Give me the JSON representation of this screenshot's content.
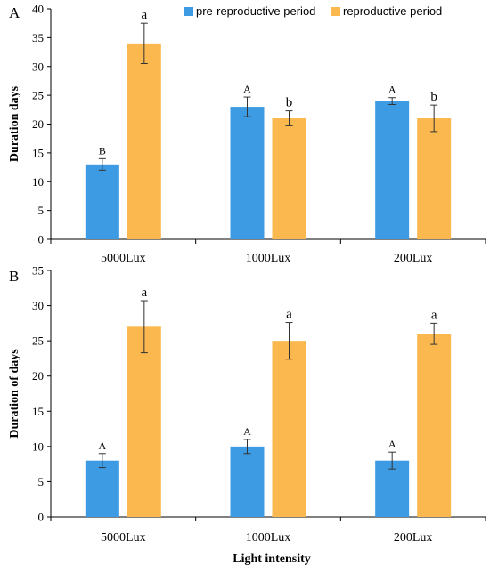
{
  "colors": {
    "pre": "#3d9be3",
    "rep": "#fbb84e",
    "axis": "#000000",
    "errorbar": "#333333"
  },
  "legend": {
    "entries": [
      {
        "label": "pre-reproductive period",
        "color": "#3d9be3"
      },
      {
        "label": "reproductive period",
        "color": "#fbb84e"
      }
    ],
    "placement": "top-right"
  },
  "xlabel": "Light intensity",
  "chart_data": [
    {
      "type": "bar",
      "panel_label": "A",
      "title": "",
      "ylabel": "Duration days",
      "ylim": [
        0,
        40
      ],
      "yticks": [
        0,
        5,
        10,
        15,
        20,
        25,
        30,
        35,
        40
      ],
      "categories": [
        "5000Lux",
        "1000Lux",
        "200Lux"
      ],
      "series": [
        {
          "name": "pre-reproductive period",
          "values": [
            13,
            23,
            24
          ],
          "errors": [
            1.0,
            1.7,
            0.6
          ],
          "letters": [
            "B",
            "A",
            "A"
          ]
        },
        {
          "name": "reproductive period",
          "values": [
            34,
            21,
            21
          ],
          "errors": [
            3.5,
            1.3,
            2.3
          ],
          "letters": [
            "a",
            "b",
            "b"
          ]
        }
      ]
    },
    {
      "type": "bar",
      "panel_label": "B",
      "title": "",
      "ylabel": "Duration of days",
      "ylim": [
        0,
        35
      ],
      "yticks": [
        0,
        5,
        10,
        15,
        20,
        25,
        30,
        35
      ],
      "categories": [
        "5000Lux",
        "1000Lux",
        "200Lux"
      ],
      "series": [
        {
          "name": "pre-reproductive period",
          "values": [
            8,
            10,
            8
          ],
          "errors": [
            1.0,
            1.0,
            1.2
          ],
          "letters": [
            "A",
            "A",
            "A"
          ]
        },
        {
          "name": "reproductive period",
          "values": [
            27,
            25,
            26
          ],
          "errors": [
            3.7,
            2.6,
            1.5
          ],
          "letters": [
            "a",
            "a",
            "a"
          ]
        }
      ]
    }
  ]
}
